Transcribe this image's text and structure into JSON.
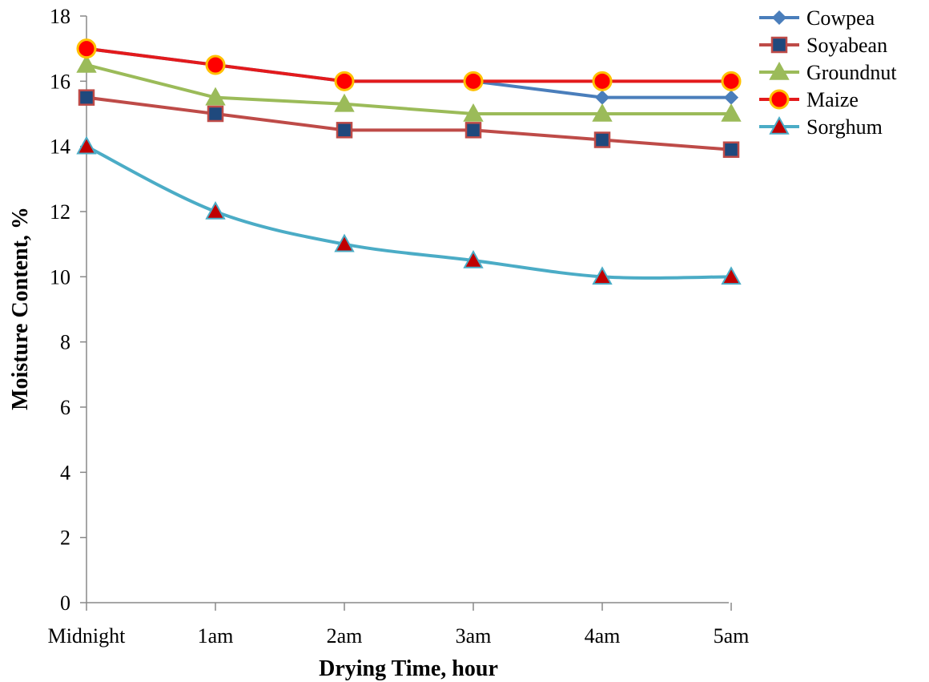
{
  "chart_data": {
    "type": "line",
    "title": "",
    "xlabel": "Drying Time, hour",
    "ylabel": "Moisture Content, %",
    "categories": [
      "Midnight",
      "1am",
      "2am",
      "3am",
      "4am",
      "5am"
    ],
    "ylim": [
      0,
      18
    ],
    "yticks": [
      0,
      2,
      4,
      6,
      8,
      10,
      12,
      14,
      16,
      18
    ],
    "grid": false,
    "legend": "top-right",
    "series": [
      {
        "name": "Cowpea",
        "values": [
          17,
          16.5,
          16,
          16,
          15.5,
          15.5
        ],
        "color": "#4a7ebb",
        "marker": "diamond",
        "markerFill": "#4a7ebb",
        "markerStroke": "#4a7ebb",
        "smooth": false
      },
      {
        "name": "Soyabean",
        "values": [
          15.5,
          15,
          14.5,
          14.5,
          14.2,
          13.9
        ],
        "color": "#be4b48",
        "marker": "square",
        "markerFill": "#1f497d",
        "markerStroke": "#be4b48",
        "smooth": false
      },
      {
        "name": "Groundnut",
        "values": [
          16.5,
          15.5,
          15.3,
          15,
          15,
          15
        ],
        "color": "#9bbb59",
        "marker": "triangle",
        "markerFill": "#9bbb59",
        "markerStroke": "#9bbb59",
        "smooth": false
      },
      {
        "name": "Maize",
        "values": [
          17,
          16.5,
          16,
          16,
          16,
          16
        ],
        "color": "#e31a1c",
        "marker": "circle",
        "markerFill": "#ff0000",
        "markerStroke": "#ffc000",
        "smooth": false
      },
      {
        "name": "Sorghum",
        "values": [
          14,
          12,
          11,
          10.5,
          10,
          10
        ],
        "color": "#4bacc6",
        "marker": "triangle",
        "markerFill": "#c00000",
        "markerStroke": "#4bacc6",
        "smooth": true
      }
    ]
  }
}
